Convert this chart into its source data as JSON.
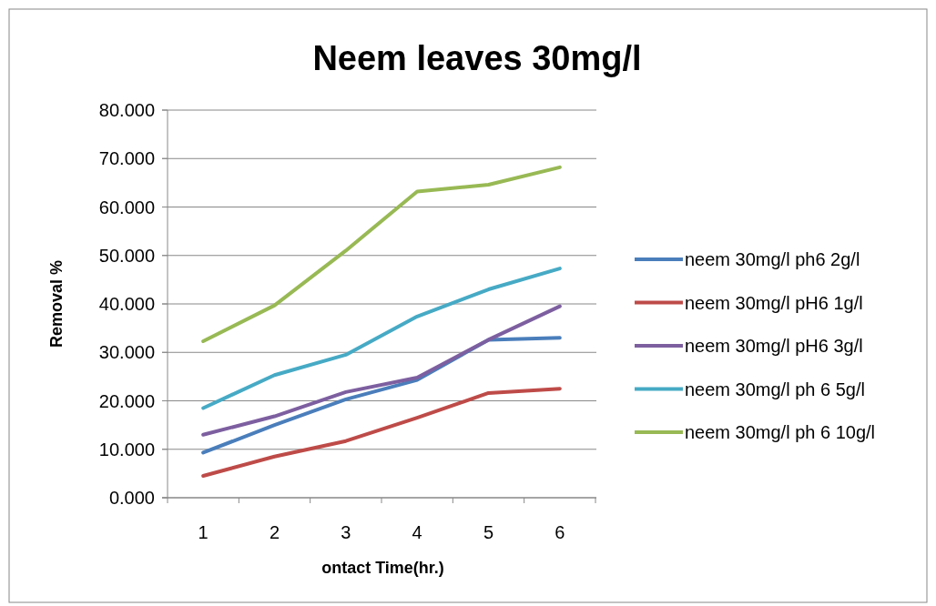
{
  "chart_data": {
    "type": "line",
    "title": "Neem leaves 30mg/l",
    "xlabel": "ontact Time(hr.)",
    "ylabel": "Removal %",
    "categories": [
      "1",
      "2",
      "3",
      "4",
      "5",
      "6"
    ],
    "ylim": [
      0,
      80
    ],
    "yticks": [
      {
        "value": 0,
        "label": "0.000"
      },
      {
        "value": 10,
        "label": "10.000"
      },
      {
        "value": 20,
        "label": "20.000"
      },
      {
        "value": 30,
        "label": "30.000"
      },
      {
        "value": 40,
        "label": "40.000"
      },
      {
        "value": 50,
        "label": "50.000"
      },
      {
        "value": 60,
        "label": "60.000"
      },
      {
        "value": 70,
        "label": "70.000"
      },
      {
        "value": 80,
        "label": "80.000"
      }
    ],
    "grid": "y",
    "legend": "right",
    "marker": "none",
    "series": [
      {
        "name": "neem 30mg/l ph6 2g/l",
        "color": "#4a7ebb",
        "values": [
          9.3,
          15,
          20.3,
          24.3,
          32.6,
          33
        ]
      },
      {
        "name": "neem 30mg/l pH6 1g/l",
        "color": "#be4b48",
        "values": [
          4.5,
          8.5,
          11.7,
          16.5,
          21.6,
          22.5
        ]
      },
      {
        "name": "neem 30mg/l pH6 3g/l",
        "color": "#7d5fa0",
        "values": [
          13,
          16.8,
          21.8,
          24.8,
          32.6,
          39.5
        ]
      },
      {
        "name": "neem 30mg/l ph 6 5g/l",
        "color": "#46aac5",
        "values": [
          18.5,
          25.3,
          29.5,
          37.4,
          43,
          47.3
        ]
      },
      {
        "name": "neem 30mg/l ph 6 10g/l",
        "color": "#98b954",
        "values": [
          32.3,
          39.7,
          51,
          63.2,
          64.6,
          68.2
        ]
      }
    ]
  }
}
